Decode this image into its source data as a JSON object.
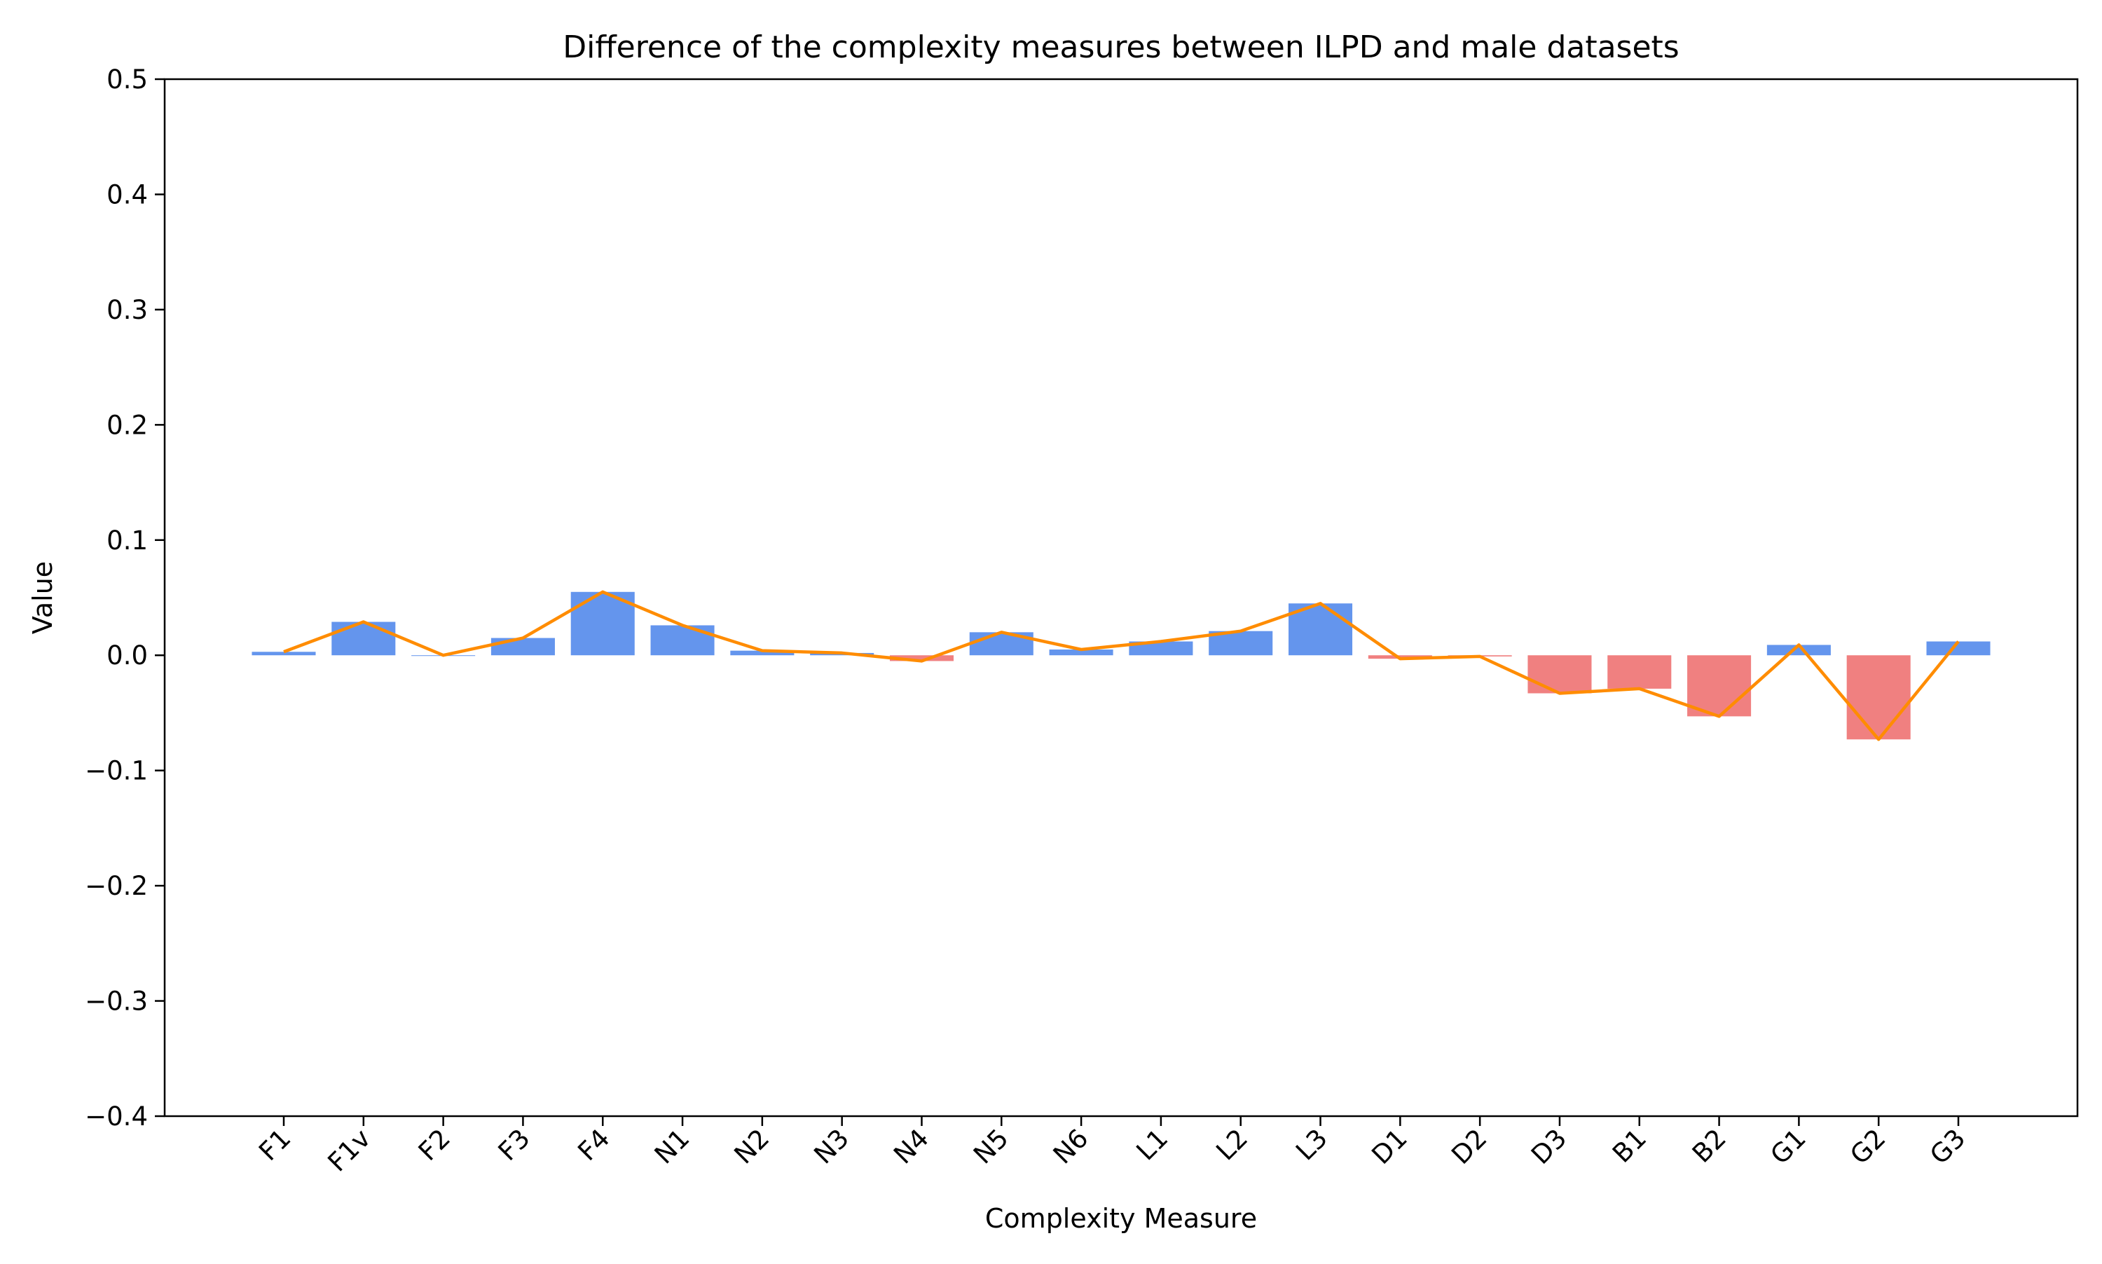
{
  "chart_data": {
    "type": "bar",
    "title": "Difference of the complexity measures between ILPD and male datasets",
    "xlabel": "Complexity Measure",
    "ylabel": "Value",
    "ylim": [
      -0.4,
      0.5
    ],
    "yticks": [
      -0.4,
      -0.3,
      -0.2,
      -0.1,
      0.0,
      0.1,
      0.2,
      0.3,
      0.4,
      0.5
    ],
    "ytick_labels": [
      "−0.4",
      "−0.3",
      "−0.2",
      "−0.1",
      "0.0",
      "0.1",
      "0.2",
      "0.3",
      "0.4",
      "0.5"
    ],
    "categories": [
      "F1",
      "F1v",
      "F2",
      "F3",
      "F4",
      "N1",
      "N2",
      "N3",
      "N4",
      "N5",
      "N6",
      "L1",
      "L2",
      "L3",
      "D1",
      "D2",
      "D3",
      "B1",
      "B2",
      "G1",
      "G2",
      "G3"
    ],
    "values": [
      0.003,
      0.029,
      0.0,
      0.015,
      0.055,
      0.026,
      0.004,
      0.002,
      -0.005,
      0.02,
      0.005,
      0.012,
      0.021,
      0.045,
      -0.003,
      -0.001,
      -0.033,
      -0.029,
      -0.053,
      0.009,
      -0.073,
      0.012
    ],
    "grid": false,
    "colors": {
      "positive_bar": "#6495ED",
      "negative_bar": "#F08080",
      "line": "#FF8C00"
    },
    "overlay_line": "same values as bars"
  }
}
